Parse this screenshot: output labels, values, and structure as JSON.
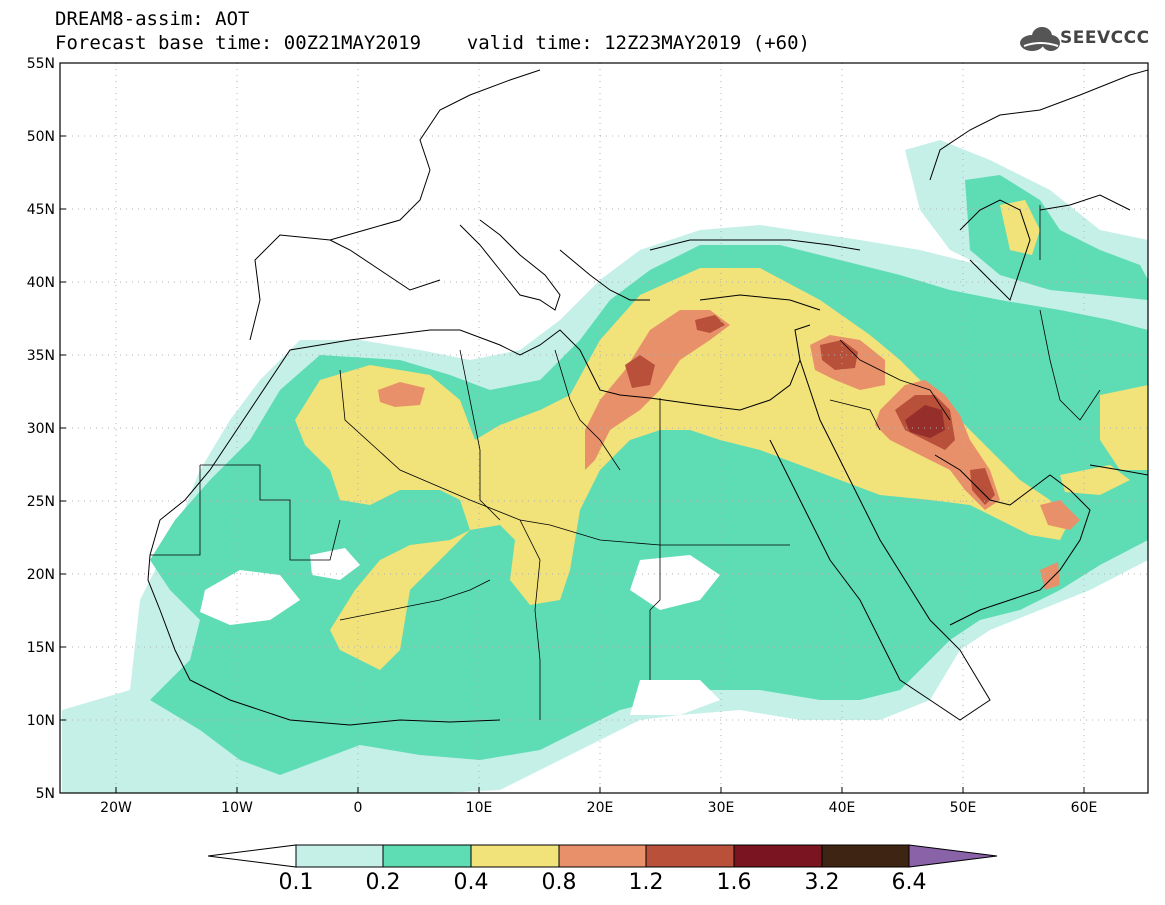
{
  "header": {
    "line1": "DREAM8-assim: AOT",
    "line2": "Forecast base time: 00Z21MAY2019    valid time: 12Z23MAY2019 (+60)"
  },
  "logo": {
    "text": "SEEVCCC",
    "icon": "cloud-icon"
  },
  "map": {
    "lat_labels": [
      "55N",
      "50N",
      "45N",
      "40N",
      "35N",
      "30N",
      "25N",
      "20N",
      "15N",
      "10N",
      "5N"
    ],
    "lon_labels": [
      "20W",
      "10W",
      "0",
      "10E",
      "20E",
      "30E",
      "40E",
      "50E",
      "60E"
    ],
    "grid": true
  },
  "colorbar": {
    "thresholds": [
      "0.1",
      "0.2",
      "0.4",
      "0.8",
      "1.2",
      "1.6",
      "3.2",
      "6.4"
    ],
    "colors": [
      "#c5f0e8",
      "#5edcb4",
      "#f2e27a",
      "#e8906a",
      "#b8503a",
      "#7a1420",
      "#3e2412",
      "#8a62a8"
    ]
  }
}
